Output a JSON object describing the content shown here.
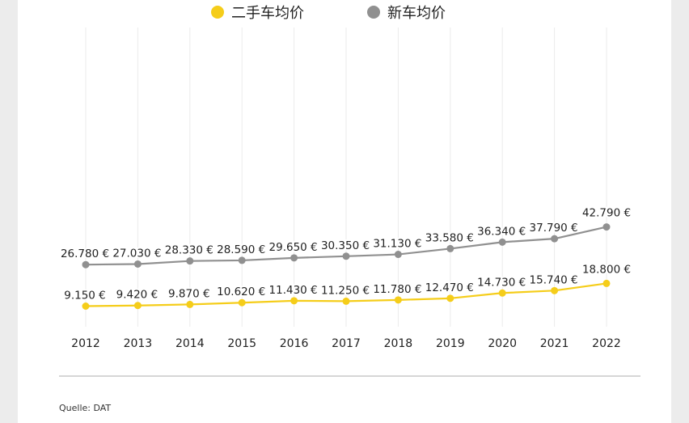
{
  "chart_data": {
    "type": "line",
    "categories": [
      "2012",
      "2013",
      "2014",
      "2015",
      "2016",
      "2017",
      "2018",
      "2019",
      "2020",
      "2021",
      "2022"
    ],
    "series": [
      {
        "name": "新车均价",
        "color": "#909090",
        "values": [
          26780,
          27030,
          28330,
          28590,
          29650,
          30350,
          31130,
          33580,
          36340,
          37790,
          42790
        ],
        "labels": [
          "26.780 €",
          "27.030 €",
          "28.330 €",
          "28.590 €",
          "29.650 €",
          "30.350 €",
          "31.130 €",
          "33.580 €",
          "36.340 €",
          "37.790 €",
          "42.790 €"
        ]
      },
      {
        "name": "二手车均价",
        "color": "#f5cd1a",
        "values": [
          9150,
          9420,
          9870,
          10620,
          11430,
          11250,
          11780,
          12470,
          14730,
          15740,
          18800
        ],
        "labels": [
          "9.150 €",
          "9.420 €",
          "9.870 €",
          "10.620 €",
          "11.430 €",
          "11.250 €",
          "11.780 €",
          "12.470 €",
          "14.730 €",
          "15.740 €",
          "18.800 €"
        ]
      }
    ],
    "legend": [
      {
        "name": "二手车均价",
        "color": "#f5cd1a"
      },
      {
        "name": "新车均价",
        "color": "#909090"
      }
    ],
    "legend_position": "top-center",
    "grid": "vertical",
    "title": "",
    "xlabel": "",
    "ylabel": ""
  },
  "source": "Quelle: DAT"
}
